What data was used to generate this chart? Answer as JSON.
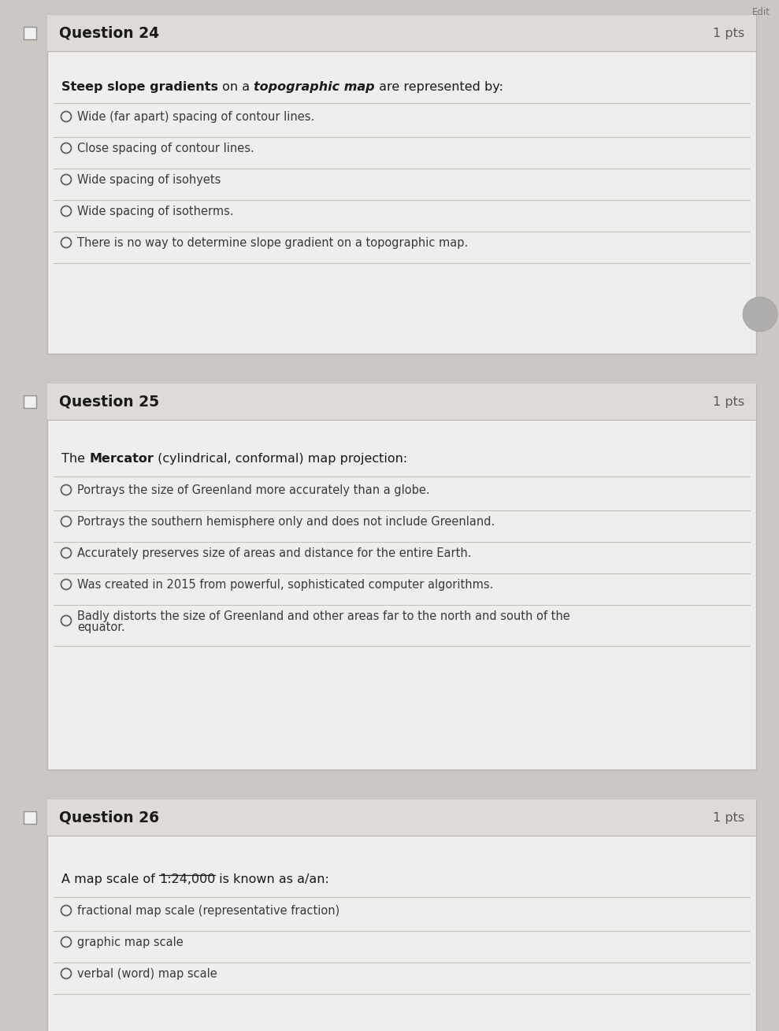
{
  "bg_color": "#cbc7c3",
  "card_bg": "#f0eeec",
  "card_border": "#b8b4b0",
  "header_bg": "#dedad6",
  "header_border": "#b8b4b0",
  "inner_bg": "#e8e4e0",
  "text_dark": "#1a1a1a",
  "text_medium": "#3a3a3a",
  "text_light": "#5a5a5a",
  "line_color": "#c0bcb8",
  "circle_edge": "#606060",
  "checkbox_edge": "#909090",
  "q24": {
    "number": "Question 24",
    "pts": "1 pts",
    "prompt": [
      {
        "text": "Steep slope gradients",
        "bold": true,
        "italic": false
      },
      {
        "text": " on a ",
        "bold": false,
        "italic": false
      },
      {
        "text": "topographic map",
        "bold": true,
        "italic": true
      },
      {
        "text": " are represented by:",
        "bold": false,
        "italic": false
      }
    ],
    "options": [
      "Wide (far apart) spacing of contour lines.",
      "Close spacing of contour lines.",
      "Wide spacing of isohyets",
      "Wide spacing of isotherms.",
      "There is no way to determine slope gradient on a topographic map."
    ]
  },
  "q25": {
    "number": "Question 25",
    "pts": "1 pts",
    "prompt": [
      {
        "text": "The ",
        "bold": false,
        "italic": false
      },
      {
        "text": "Mercator",
        "bold": true,
        "italic": false
      },
      {
        "text": " (cylindrical, conformal) map projection:",
        "bold": false,
        "italic": false
      }
    ],
    "options": [
      "Portrays the size of Greenland more accurately than a globe.",
      "Portrays the southern hemisphere only and does not include Greenland.",
      "Accurately preserves size of areas and distance for the entire Earth.",
      "Was created in 2015 from powerful, sophisticated computer algorithms.",
      "Badly distorts the size of Greenland and other areas far to the north and south of the\nequator."
    ]
  },
  "q26": {
    "number": "Question 26",
    "pts": "1 pts",
    "prompt": [
      {
        "text": "A map scale of ",
        "bold": false,
        "italic": false
      },
      {
        "text": "1:24,000",
        "bold": false,
        "italic": false,
        "underline": true
      },
      {
        "text": " is known as a/an:",
        "bold": false,
        "italic": false
      }
    ],
    "options": [
      "fractional map scale (representative fraction)",
      "graphic map scale",
      "verbal (word) map scale"
    ]
  }
}
